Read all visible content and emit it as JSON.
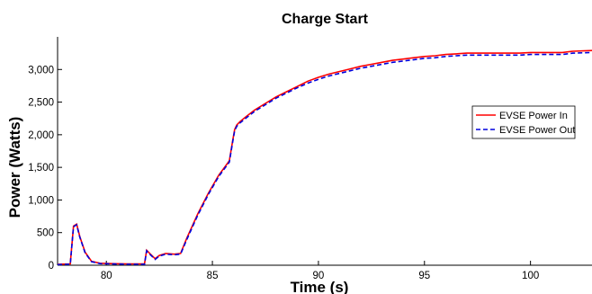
{
  "chart_data": {
    "type": "line",
    "title": "Charge Start",
    "xlabel": "Time (s)",
    "ylabel": "Power (Watts)",
    "xlim": [
      77.7,
      102.9
    ],
    "ylim": [
      0,
      3500
    ],
    "xticks": [
      80,
      85,
      90,
      95,
      100
    ],
    "xtick_labels": [
      "80",
      "85",
      "90",
      "95",
      "100"
    ],
    "yticks": [
      0,
      500,
      1000,
      1500,
      2000,
      2500,
      3000
    ],
    "ytick_labels": [
      "0",
      "500",
      "1,000",
      "1,500",
      "2,000",
      "2,500",
      "3,000"
    ],
    "grid": false,
    "legend_position": "right",
    "series": [
      {
        "name": "EVSE Power In",
        "color": "#ff0000",
        "dash": "solid",
        "x": [
          77.7,
          78.3,
          78.45,
          78.6,
          78.75,
          79.0,
          79.3,
          79.7,
          80.2,
          81.0,
          81.8,
          81.9,
          82.05,
          82.3,
          82.5,
          82.8,
          83.2,
          83.5,
          83.8,
          84.3,
          84.8,
          85.3,
          85.8,
          85.95,
          86.05,
          86.15,
          86.3,
          86.6,
          87.0,
          87.5,
          88.0,
          88.5,
          89.0,
          89.5,
          90.0,
          90.5,
          91.0,
          91.5,
          92.0,
          92.5,
          93.0,
          93.5,
          94.0,
          94.5,
          95.0,
          95.5,
          96.0,
          96.5,
          97.0,
          98.0,
          99.0,
          99.5,
          100.0,
          101.0,
          101.5,
          102.0,
          102.9
        ],
        "y": [
          15,
          20,
          600,
          630,
          440,
          200,
          60,
          30,
          25,
          20,
          20,
          230,
          180,
          100,
          150,
          180,
          170,
          180,
          420,
          780,
          1100,
          1380,
          1600,
          1900,
          2080,
          2150,
          2200,
          2280,
          2380,
          2480,
          2580,
          2660,
          2740,
          2820,
          2880,
          2930,
          2970,
          3010,
          3050,
          3080,
          3110,
          3140,
          3160,
          3180,
          3200,
          3210,
          3230,
          3240,
          3250,
          3250,
          3250,
          3250,
          3260,
          3260,
          3260,
          3280,
          3290
        ]
      },
      {
        "name": "EVSE Power Out",
        "color": "#0000dd",
        "dash": "dashed",
        "x": [
          77.7,
          78.3,
          78.45,
          78.6,
          78.75,
          79.0,
          79.3,
          79.7,
          80.2,
          81.0,
          81.8,
          81.9,
          82.05,
          82.3,
          82.5,
          82.8,
          83.2,
          83.5,
          83.8,
          84.3,
          84.8,
          85.3,
          85.8,
          85.95,
          86.05,
          86.15,
          86.3,
          86.6,
          87.0,
          87.5,
          88.0,
          88.5,
          89.0,
          89.5,
          90.0,
          90.5,
          91.0,
          91.5,
          92.0,
          92.5,
          93.0,
          93.5,
          94.0,
          94.5,
          95.0,
          95.5,
          96.0,
          96.5,
          97.0,
          98.0,
          99.0,
          99.5,
          100.0,
          101.0,
          101.5,
          102.0,
          102.9
        ],
        "y": [
          10,
          15,
          590,
          620,
          430,
          190,
          55,
          25,
          20,
          15,
          15,
          220,
          170,
          90,
          140,
          170,
          160,
          170,
          400,
          760,
          1080,
          1360,
          1580,
          1880,
          2060,
          2130,
          2180,
          2260,
          2360,
          2460,
          2560,
          2640,
          2720,
          2790,
          2850,
          2900,
          2940,
          2980,
          3020,
          3050,
          3080,
          3110,
          3130,
          3150,
          3170,
          3180,
          3200,
          3210,
          3220,
          3220,
          3220,
          3220,
          3230,
          3230,
          3230,
          3250,
          3260
        ]
      }
    ]
  }
}
